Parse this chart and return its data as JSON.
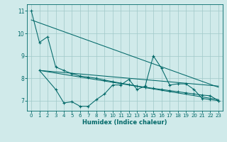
{
  "xlabel": "Humidex (Indice chaleur)",
  "background_color": "#d0eaea",
  "grid_color": "#a0c8c8",
  "line_color": "#006868",
  "xlim": [
    -0.5,
    23.5
  ],
  "ylim": [
    6.55,
    11.3
  ],
  "yticks": [
    7,
    8,
    9,
    10,
    11
  ],
  "xticks": [
    0,
    1,
    2,
    3,
    4,
    5,
    6,
    7,
    8,
    9,
    10,
    11,
    12,
    13,
    14,
    15,
    16,
    17,
    18,
    19,
    20,
    21,
    22,
    23
  ],
  "curve1_x": [
    0,
    1,
    2,
    3,
    4,
    5,
    6,
    7,
    8,
    9,
    10,
    11,
    12,
    13,
    14,
    15,
    16,
    17,
    18,
    19,
    20,
    21,
    22,
    23
  ],
  "curve1_y": [
    11.0,
    9.6,
    9.85,
    8.5,
    8.35,
    8.2,
    8.1,
    8.05,
    8.0,
    7.92,
    7.85,
    7.78,
    7.72,
    7.65,
    7.6,
    7.55,
    7.5,
    7.45,
    7.4,
    7.35,
    7.3,
    7.25,
    7.22,
    7.0
  ],
  "curve2_x": [
    1,
    3,
    4,
    5,
    6,
    7,
    8,
    9,
    10,
    11,
    12,
    13,
    14,
    15,
    16,
    17,
    18,
    19,
    20,
    21,
    22,
    23
  ],
  "curve2_y": [
    8.35,
    7.5,
    6.9,
    6.95,
    6.75,
    6.75,
    7.05,
    7.3,
    7.7,
    7.7,
    7.95,
    7.5,
    7.65,
    9.0,
    8.45,
    7.7,
    7.75,
    7.75,
    7.5,
    7.1,
    7.05,
    7.0
  ],
  "trend1_x": [
    1,
    23
  ],
  "trend1_y": [
    8.35,
    7.65
  ],
  "trend2_x": [
    1,
    23
  ],
  "trend2_y": [
    8.35,
    7.05
  ],
  "trend3_x": [
    0,
    23
  ],
  "trend3_y": [
    10.6,
    7.6
  ]
}
